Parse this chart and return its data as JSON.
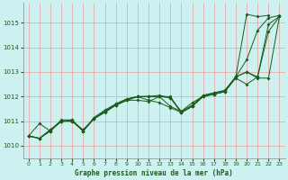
{
  "title": "Graphe pression niveau de la mer (hPa)",
  "background_color": "#cdf0f0",
  "grid_color": "#e8a0a0",
  "line_color": "#1a5c1a",
  "xlim": [
    -0.5,
    23.5
  ],
  "ylim": [
    1009.5,
    1015.8
  ],
  "yticks": [
    1010,
    1011,
    1012,
    1013,
    1014,
    1015
  ],
  "xticks": [
    0,
    1,
    2,
    3,
    4,
    5,
    6,
    7,
    8,
    9,
    10,
    11,
    12,
    13,
    14,
    15,
    16,
    17,
    18,
    19,
    20,
    21,
    22,
    23
  ],
  "line1_x": [
    0,
    1,
    2,
    3,
    4,
    5,
    6,
    7,
    8,
    9,
    10,
    11,
    12,
    13,
    14,
    15,
    16,
    17,
    18,
    19,
    20,
    21,
    22,
    23
  ],
  "line1_y": [
    1010.4,
    1010.3,
    1010.6,
    1011.0,
    1011.05,
    1010.6,
    1011.1,
    1011.4,
    1011.65,
    1011.85,
    1011.85,
    1011.8,
    1012.0,
    1011.6,
    1011.4,
    1011.75,
    1012.0,
    1012.1,
    1012.2,
    1012.8,
    1013.5,
    1014.7,
    1015.2,
    1015.3
  ],
  "line2_x": [
    0,
    1,
    2,
    3,
    4,
    5,
    6,
    7,
    8,
    9,
    10,
    11,
    12,
    13,
    14,
    15,
    16,
    17,
    18,
    19,
    20,
    21,
    22
  ],
  "line2_y": [
    1010.4,
    1010.3,
    1010.65,
    1011.0,
    1011.0,
    1010.6,
    1011.1,
    1011.4,
    1011.65,
    1011.85,
    1012.0,
    1012.0,
    1012.0,
    1011.95,
    1011.35,
    1011.6,
    1012.0,
    1012.1,
    1012.2,
    1012.8,
    1015.35,
    1015.25,
    1015.3
  ],
  "line3_x": [
    0,
    1,
    2,
    3,
    4,
    5,
    6,
    7,
    8,
    9,
    10,
    11,
    12,
    13,
    14,
    15,
    16,
    17,
    18,
    19,
    20,
    21,
    22,
    23
  ],
  "line3_y": [
    1010.4,
    1010.3,
    1010.65,
    1011.0,
    1011.0,
    1010.6,
    1011.1,
    1011.4,
    1011.7,
    1011.9,
    1012.0,
    1012.0,
    1012.0,
    1012.0,
    1011.35,
    1011.6,
    1012.05,
    1012.15,
    1012.25,
    1012.8,
    1013.0,
    1012.8,
    1014.95,
    1015.25
  ],
  "line4_x": [
    0,
    1,
    2,
    3,
    4,
    5,
    6,
    7,
    8,
    9,
    10,
    11,
    12,
    13,
    14,
    15,
    16,
    17,
    18,
    19,
    20,
    21,
    22,
    23
  ],
  "line4_y": [
    1010.4,
    1010.9,
    1010.6,
    1011.0,
    1011.0,
    1010.65,
    1011.1,
    1011.35,
    1011.65,
    1011.85,
    1012.0,
    1011.85,
    1011.75,
    1011.55,
    1011.35,
    1011.6,
    1012.0,
    1012.1,
    1012.2,
    1012.75,
    1012.5,
    1012.8,
    1014.65,
    1015.25
  ],
  "line5_x": [
    0,
    1,
    2,
    3,
    4,
    5,
    6,
    7,
    8,
    9,
    10,
    11,
    12,
    13,
    14,
    15,
    16,
    17,
    18,
    19,
    20,
    21,
    22,
    23
  ],
  "line5_y": [
    1010.4,
    1010.3,
    1010.6,
    1011.05,
    1011.05,
    1010.6,
    1011.15,
    1011.45,
    1011.7,
    1011.9,
    1012.0,
    1012.0,
    1012.05,
    1011.95,
    1011.4,
    1011.65,
    1012.05,
    1012.15,
    1012.25,
    1012.8,
    1013.0,
    1012.75,
    1012.75,
    1015.25
  ]
}
